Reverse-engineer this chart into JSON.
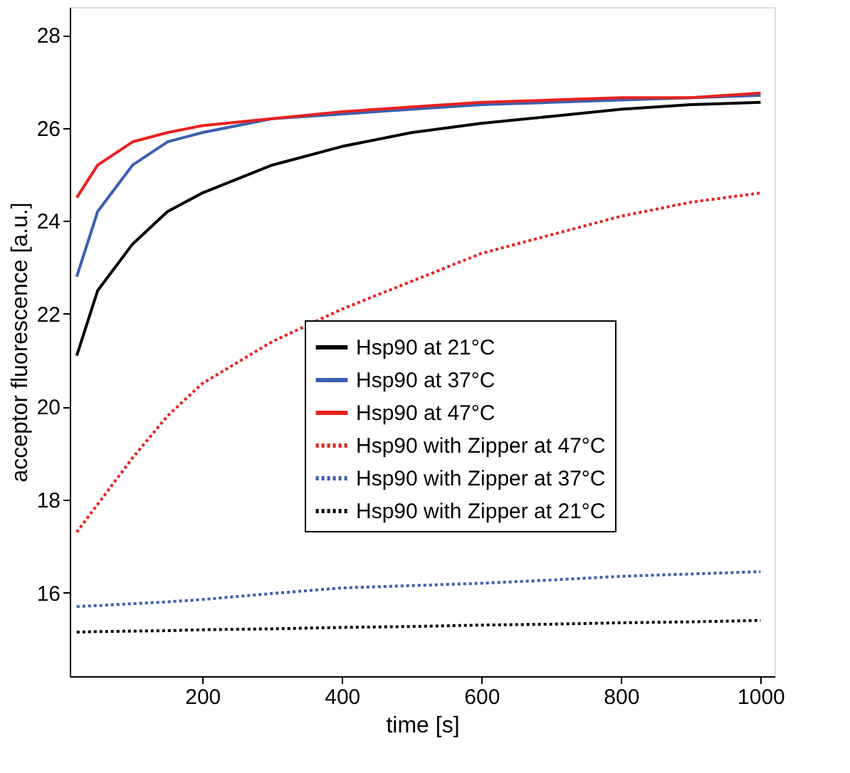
{
  "chart_data": {
    "type": "line",
    "xlabel": "time [s]",
    "ylabel": "acceptor fluorescence [a.u.]",
    "xlim": [
      10,
      1020
    ],
    "ylim": [
      14.2,
      28.6
    ],
    "xticks": [
      200,
      400,
      600,
      800,
      1000
    ],
    "yticks": [
      16,
      18,
      20,
      22,
      24,
      26,
      28
    ],
    "grid": false,
    "legend": "bottom right",
    "marker": "none",
    "x": [
      20,
      50,
      100,
      150,
      200,
      300,
      400,
      500,
      600,
      700,
      800,
      900,
      1000
    ],
    "series": [
      {
        "name": "Hsp90 at 21°C",
        "color": "#000000",
        "line_style": "solid",
        "values": [
          21.1,
          22.5,
          23.5,
          24.2,
          24.6,
          25.2,
          25.6,
          25.9,
          26.1,
          26.25,
          26.4,
          26.5,
          26.55
        ]
      },
      {
        "name": "Hsp90 at 37°C",
        "color": "#3a5fb0",
        "line_style": "solid",
        "values": [
          22.8,
          24.2,
          25.2,
          25.7,
          25.9,
          26.2,
          26.3,
          26.4,
          26.5,
          26.55,
          26.6,
          26.65,
          26.7
        ]
      },
      {
        "name": "Hsp90 at 47°C",
        "color": "#e8211f",
        "line_style": "solid",
        "values": [
          24.5,
          25.2,
          25.7,
          25.9,
          26.05,
          26.2,
          26.35,
          26.45,
          26.55,
          26.6,
          26.65,
          26.65,
          26.75
        ]
      },
      {
        "name": "Hsp90 with Zipper at 47°C",
        "color": "#e8211f",
        "line_style": "dotted",
        "values": [
          17.3,
          17.9,
          18.9,
          19.8,
          20.5,
          21.4,
          22.1,
          22.7,
          23.3,
          23.7,
          24.1,
          24.4,
          24.6
        ]
      },
      {
        "name": "Hsp90 with Zipper at 37°C",
        "color": "#3a5fb0",
        "line_style": "dotted",
        "values": [
          15.7,
          15.72,
          15.76,
          15.8,
          15.85,
          15.98,
          16.1,
          16.15,
          16.2,
          16.27,
          16.35,
          16.4,
          16.45
        ]
      },
      {
        "name": "Hsp90 with Zipper at 21°C",
        "color": "#000000",
        "line_style": "dotted",
        "values": [
          15.15,
          15.16,
          15.17,
          15.18,
          15.2,
          15.22,
          15.25,
          15.27,
          15.3,
          15.32,
          15.35,
          15.37,
          15.4
        ]
      }
    ]
  }
}
